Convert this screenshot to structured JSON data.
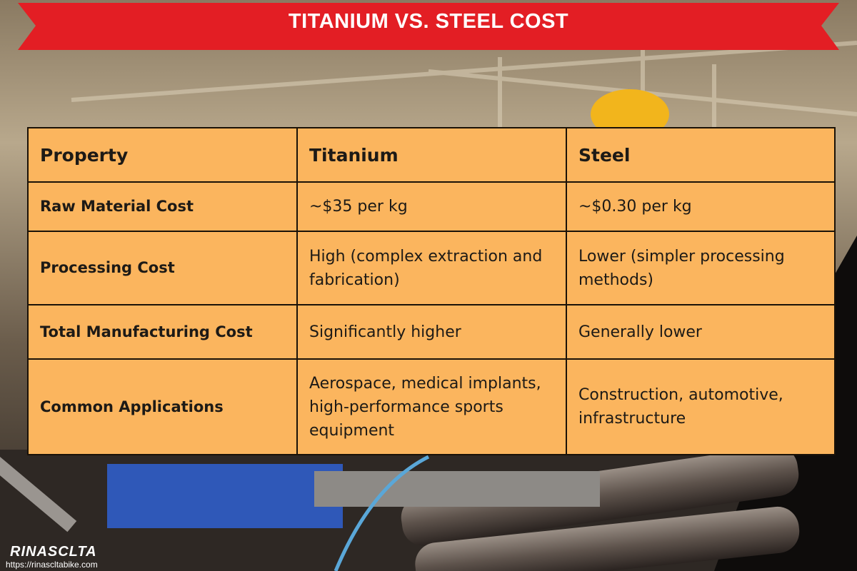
{
  "header": {
    "title": "TITANIUM VS. STEEL COST"
  },
  "table": {
    "columns": [
      "Property",
      "Titanium",
      "Steel"
    ],
    "rows": [
      [
        "Raw Material Cost",
        "~$35 per kg",
        "~$0.30 per kg"
      ],
      [
        "Processing Cost",
        "High (complex extraction and fabrication)",
        "Lower (simpler processing methods)"
      ],
      [
        "Total Manufacturing Cost",
        "Significantly higher",
        "Generally lower"
      ],
      [
        "Common Applications",
        "Aerospace, medical implants, high-performance sports equipment",
        "Construction, automotive, infrastructure"
      ]
    ]
  },
  "brand": {
    "name": "RINASCLTA",
    "url": "https://rinascltabike.com"
  }
}
